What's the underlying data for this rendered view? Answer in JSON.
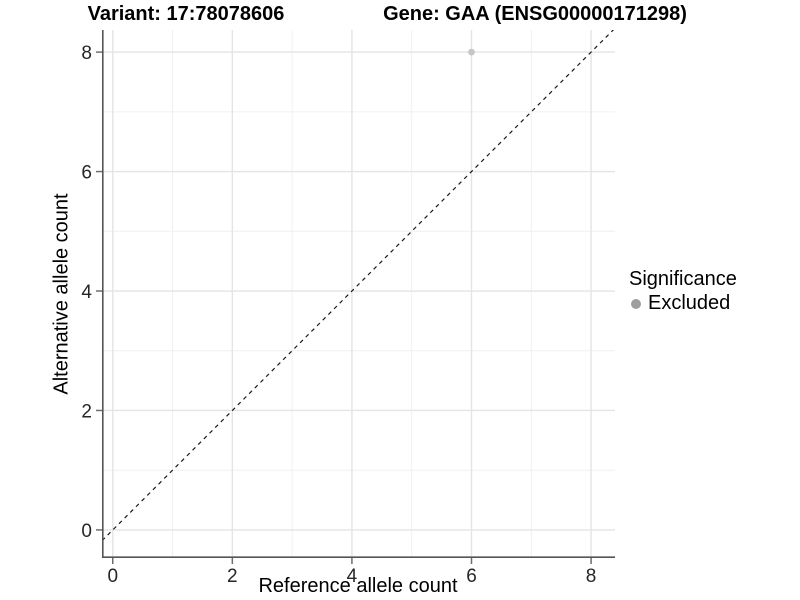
{
  "titles": {
    "variant": "Variant: 17:78078606",
    "gene": "Gene: GAA (ENSG00000171298)"
  },
  "legend": {
    "title": "Significance",
    "items": [
      {
        "label": "Excluded",
        "color": "#9e9e9e"
      }
    ]
  },
  "chart_data": {
    "type": "scatter",
    "title": "Variant: 17:78078606 | Gene: GAA (ENSG00000171298)",
    "xlabel": "Reference allele count",
    "ylabel": "Alternative allele count",
    "xlim": [
      -0.18,
      8.4
    ],
    "ylim": [
      -0.47,
      8.37
    ],
    "x_ticks": [
      0,
      2,
      4,
      6,
      8
    ],
    "y_ticks": [
      0,
      2,
      4,
      6,
      8
    ],
    "x_minor_ticks": [
      1,
      3,
      5,
      7
    ],
    "y_minor_ticks": [
      1,
      3,
      5,
      7
    ],
    "grid": "on",
    "legend_position": "right",
    "series": [
      {
        "name": "Excluded",
        "color": "#c6c6c6",
        "points": [
          [
            6,
            8
          ]
        ]
      }
    ],
    "reference_line": {
      "slope": 1,
      "intercept": 0,
      "style": "dashed",
      "color": "#1a1a1a"
    }
  },
  "colors": {
    "background": "#ffffff",
    "grid_major": "#e4e4e4",
    "grid_minor": "#f0f0f0",
    "axis_line": "#555555",
    "tick_mark": "#6e6e6e",
    "tick_text": "#262626",
    "point": "#c6c6c6",
    "legend_point": "#9e9e9e",
    "abline": "#1a1a1a"
  }
}
